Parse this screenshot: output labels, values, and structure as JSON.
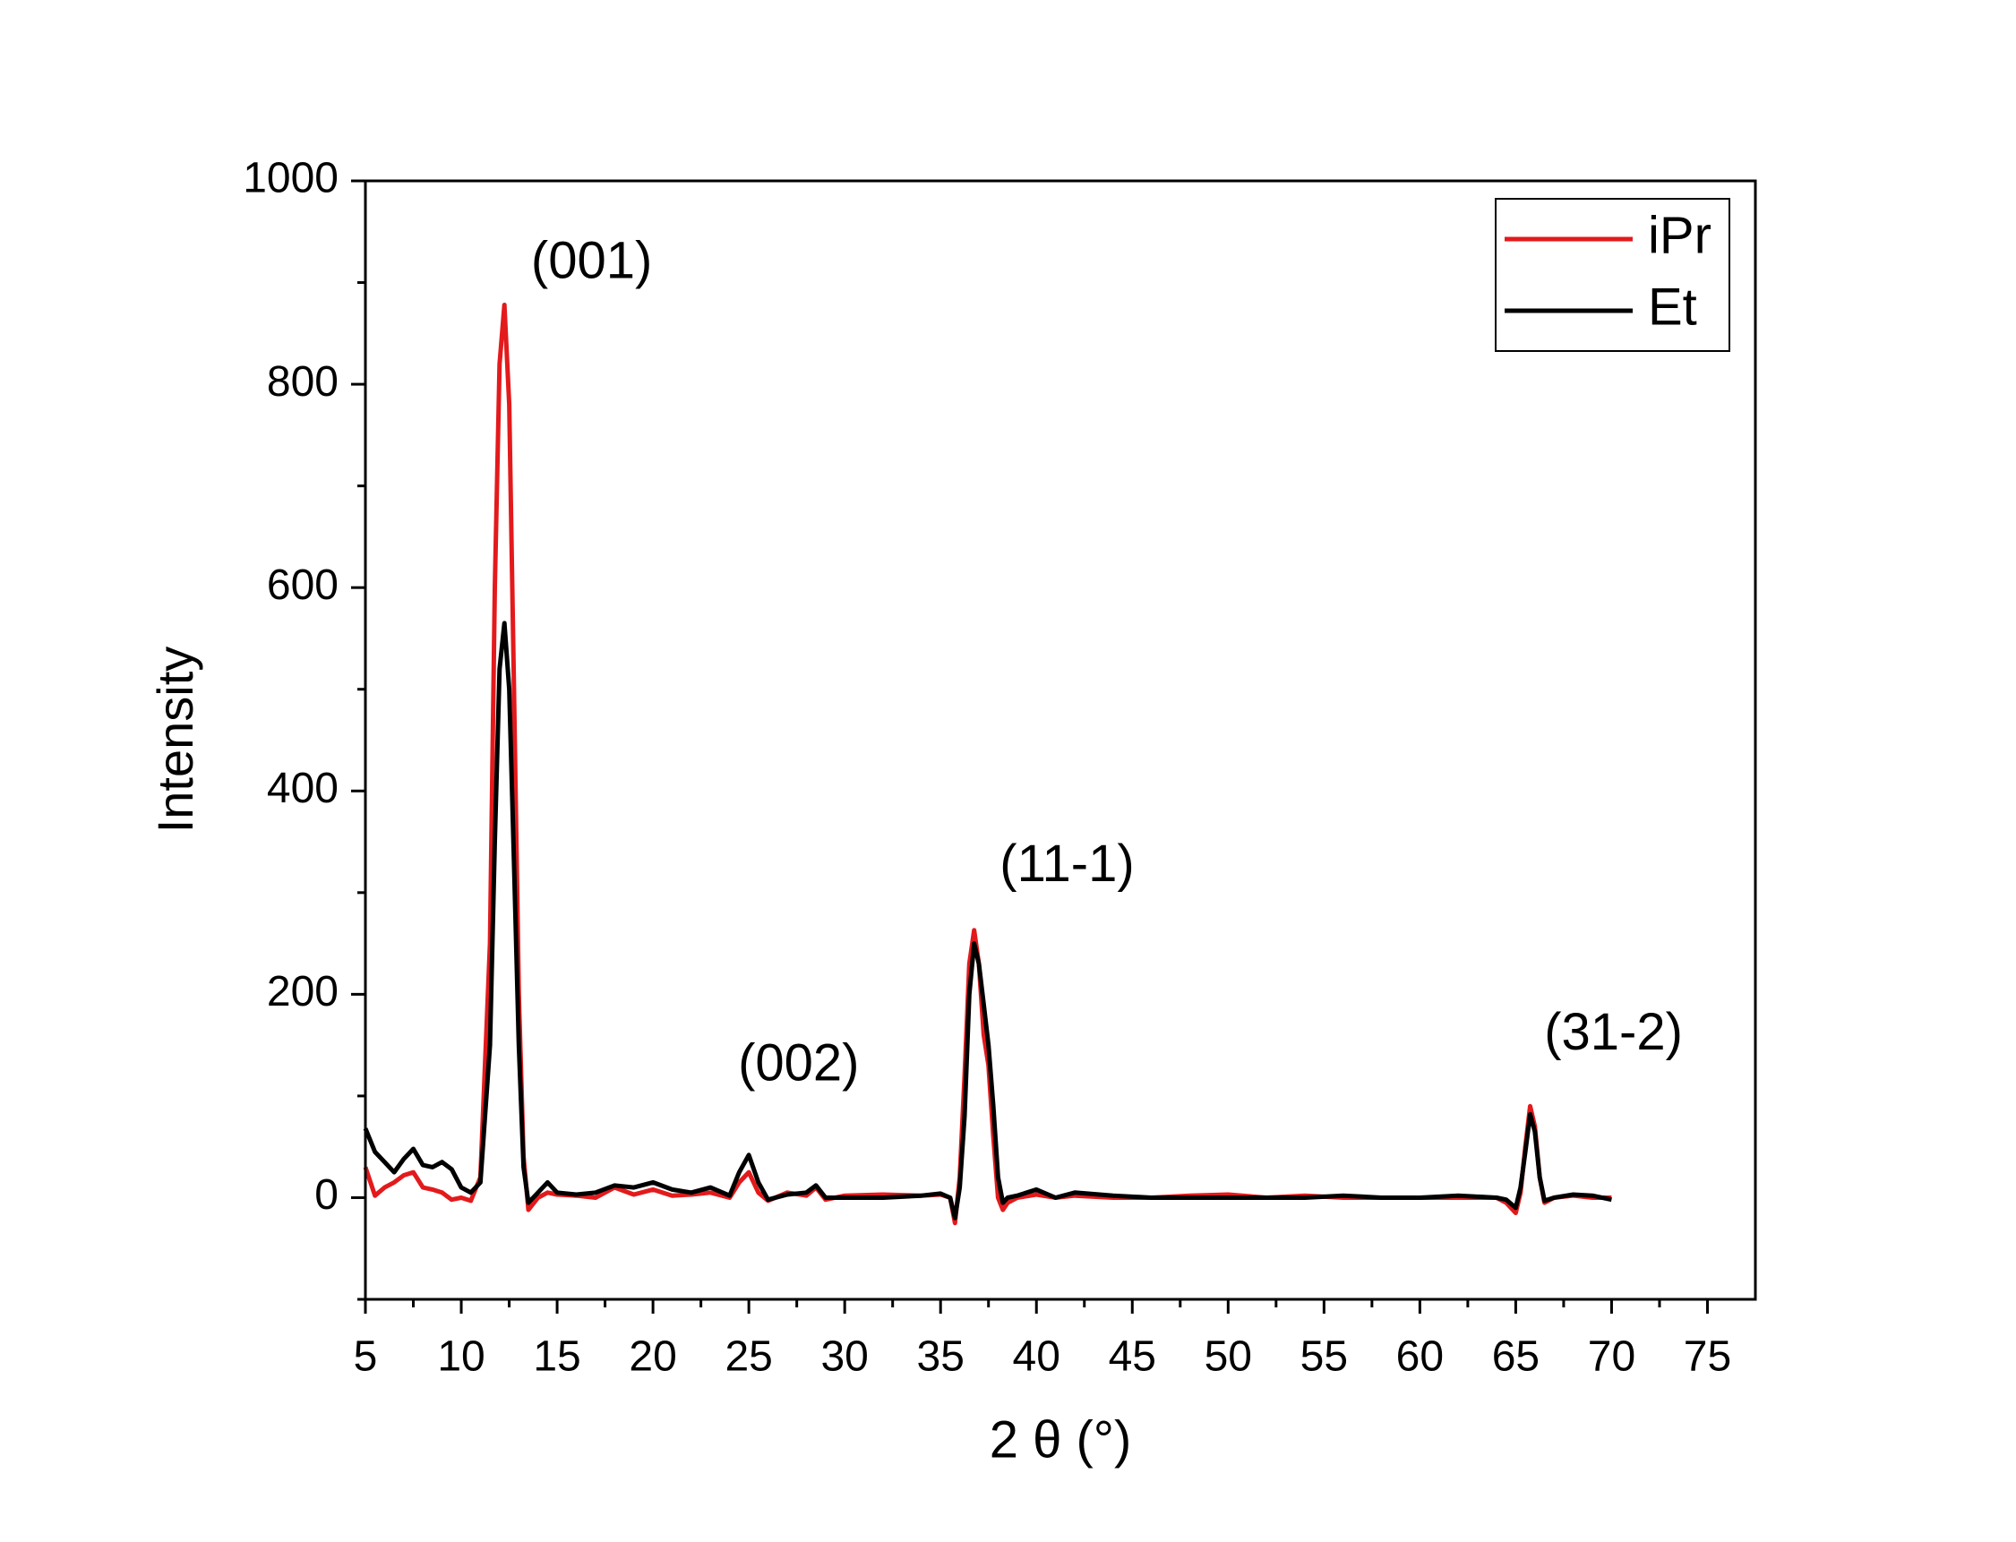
{
  "chart_data": {
    "type": "line",
    "xlabel": "2 θ (°)",
    "ylabel": "Intensity",
    "x": [
      5,
      5.5,
      6,
      6.5,
      7,
      7.5,
      8,
      8.5,
      9,
      9.5,
      10,
      10.5,
      11,
      11.5,
      11.75,
      12,
      12.25,
      12.5,
      12.75,
      13,
      13.25,
      13.5,
      14,
      14.5,
      15,
      16,
      17,
      18,
      19,
      20,
      21,
      22,
      23,
      24,
      24.5,
      25,
      25.5,
      26,
      27,
      28,
      28.5,
      29,
      30,
      32,
      34,
      35,
      35.5,
      35.75,
      36,
      36.25,
      36.5,
      36.75,
      37,
      37.25,
      37.5,
      37.75,
      38,
      38.25,
      38.5,
      39,
      40,
      41,
      42,
      44,
      46,
      48,
      50,
      52,
      54,
      56,
      58,
      60,
      62,
      64,
      64.5,
      65,
      65.25,
      65.5,
      65.75,
      66,
      66.25,
      66.5,
      67,
      68,
      69,
      70
    ],
    "series": [
      {
        "name": "iPr",
        "color": "#e31a1c",
        "values": [
          30,
          2,
          10,
          15,
          22,
          25,
          10,
          8,
          5,
          -2,
          0,
          -3,
          20,
          250,
          600,
          820,
          878,
          780,
          500,
          200,
          40,
          -12,
          0,
          5,
          3,
          2,
          0,
          10,
          3,
          8,
          2,
          3,
          5,
          0,
          15,
          25,
          5,
          -3,
          5,
          2,
          10,
          -2,
          2,
          3,
          2,
          3,
          0,
          -25,
          20,
          120,
          230,
          263,
          230,
          160,
          130,
          60,
          0,
          -12,
          -5,
          0,
          3,
          0,
          2,
          0,
          0,
          2,
          3,
          0,
          2,
          0,
          0,
          0,
          0,
          0,
          -5,
          -15,
          5,
          50,
          90,
          70,
          20,
          -5,
          0,
          2,
          0,
          0
        ]
      },
      {
        "name": "Et",
        "color": "#000000",
        "values": [
          68,
          45,
          35,
          25,
          38,
          48,
          32,
          30,
          35,
          28,
          10,
          5,
          15,
          150,
          350,
          520,
          565,
          500,
          330,
          150,
          30,
          -5,
          5,
          15,
          5,
          3,
          5,
          12,
          10,
          15,
          8,
          5,
          10,
          2,
          25,
          42,
          15,
          -2,
          3,
          5,
          12,
          0,
          0,
          0,
          2,
          4,
          0,
          -20,
          10,
          80,
          200,
          250,
          230,
          190,
          150,
          90,
          20,
          -5,
          0,
          2,
          8,
          0,
          5,
          2,
          0,
          0,
          0,
          0,
          0,
          2,
          0,
          0,
          2,
          0,
          -2,
          -10,
          10,
          45,
          82,
          65,
          20,
          -3,
          0,
          3,
          2,
          -2
        ]
      }
    ],
    "xlim": [
      5,
      77.5
    ],
    "ylim": [
      -100,
      1000
    ],
    "xticks": [
      5,
      10,
      15,
      20,
      25,
      30,
      35,
      40,
      45,
      50,
      55,
      60,
      65,
      70,
      75
    ],
    "yticks": [
      0,
      200,
      400,
      600,
      800,
      1000
    ],
    "annotations": [
      "(001)",
      "(002)",
      "(11-1)",
      "(31-2)"
    ],
    "legend": "upper right",
    "grid": false
  }
}
